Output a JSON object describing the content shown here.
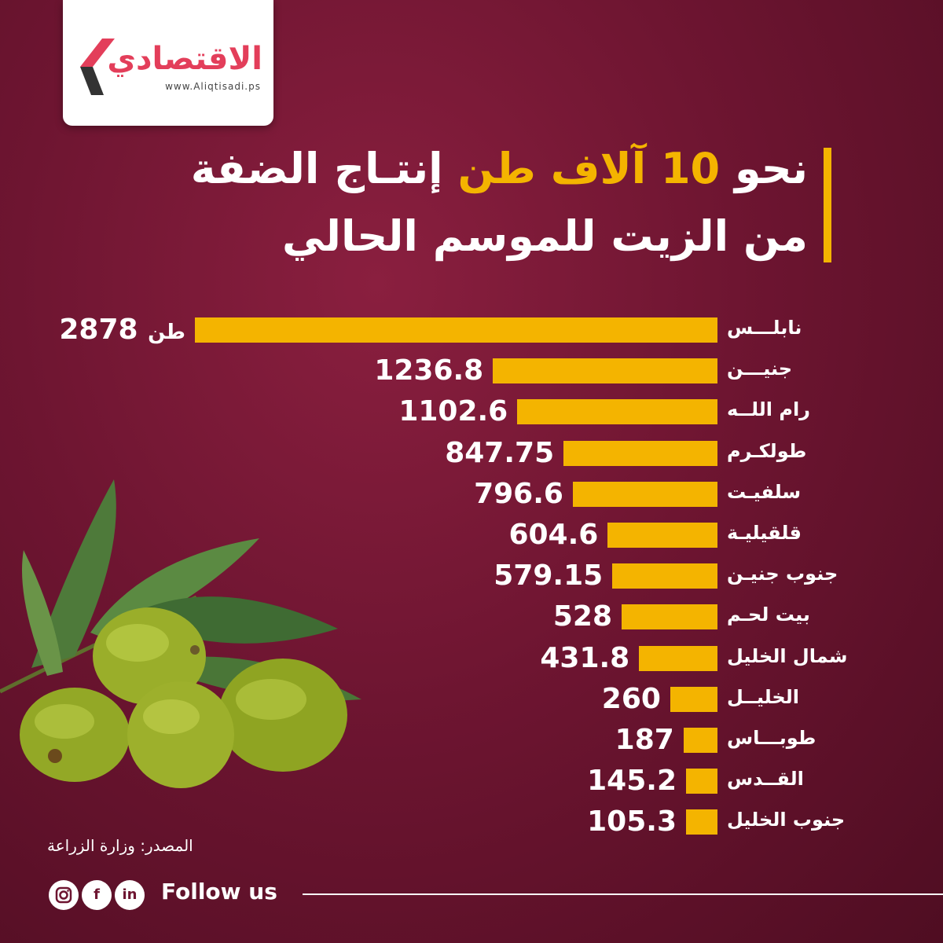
{
  "logo": {
    "name": "الاقتصادي",
    "url": "www.Aliqtisadi.ps"
  },
  "title": {
    "line1_pre": "نحو",
    "line1_highlight": "10 آلاف طن",
    "line1_post": "إنتـاج الضفة",
    "line2": "من الزيت للموسم الحالي"
  },
  "colors": {
    "background": "#6e1531",
    "bar": "#f4b400",
    "text": "#ffffff",
    "logo": "#e33e5a"
  },
  "chart_data": {
    "type": "bar",
    "orientation": "horizontal",
    "unit": "طن",
    "categories": [
      "نابلـــس",
      "جنيـــن",
      "رام اللــه",
      "طولكـرم",
      "سلفيـت",
      "قلقيليـة",
      "جنوب جنيـن",
      "بيت لحـم",
      "شمال الخليل",
      "الخليــل",
      "طوبـــاس",
      "القــدس",
      "جنوب الخليل"
    ],
    "values": [
      2878,
      1236.8,
      1102.6,
      847.75,
      796.6,
      604.6,
      579.15,
      528,
      431.8,
      260,
      187,
      145.2,
      105.3
    ],
    "value_labels": [
      "2878",
      "1236.8",
      "1102.6",
      "847.75",
      "796.6",
      "604.6",
      "579.15",
      "528",
      "431.8",
      "260",
      "187",
      "145.2",
      "105.3"
    ]
  },
  "source": "المصدر: وزارة الزراعة",
  "footer": {
    "follow": "Follow us"
  },
  "social_icons": [
    "instagram-icon",
    "facebook-icon",
    "linkedin-icon"
  ]
}
